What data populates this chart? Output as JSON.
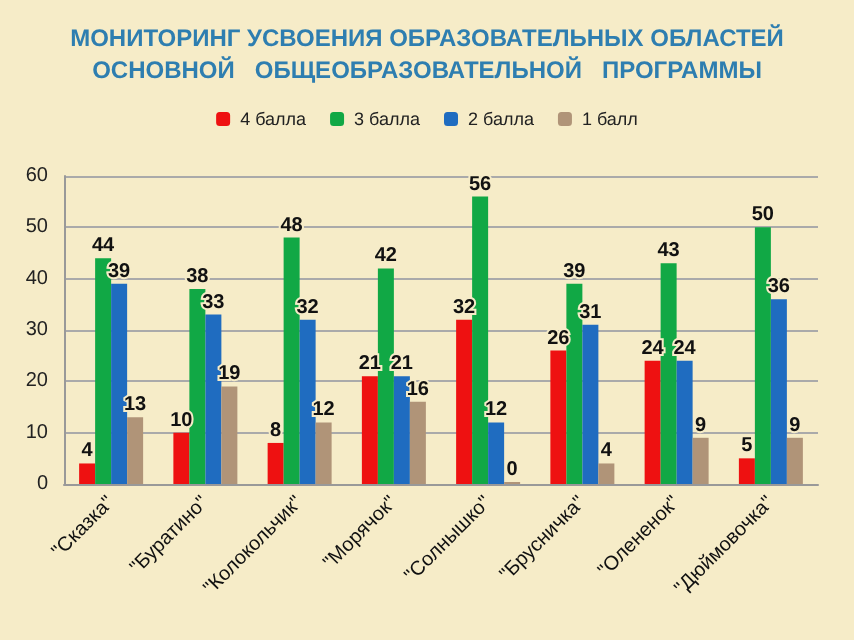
{
  "chart_data": {
    "type": "bar",
    "title": "МОНИТОРИНГ УСВОЕНИЯ ОБРАЗОВАТЕЛЬНЫХ ОБЛАСТЕЙ\nОСНОВНОЙ   ОБЩЕОБРАЗОВАТЕЛЬНОЙ   ПРОГРАММЫ",
    "categories": [
      "\"Сказка\"",
      "\"Буратино\"",
      "\"Колокольчик\"",
      "\"Морячок\"",
      "\"Солнышко\"",
      "\"Брусничка\"",
      "\"Олененок\"",
      "\"Дюймовочка\""
    ],
    "series": [
      {
        "name": "4 балла",
        "color": "#ee1111",
        "values": [
          4,
          10,
          8,
          21,
          32,
          26,
          24,
          5
        ]
      },
      {
        "name": "3 балла",
        "color": "#11a845",
        "values": [
          44,
          38,
          48,
          42,
          56,
          39,
          43,
          50
        ]
      },
      {
        "name": "2 балла",
        "color": "#1f6cc0",
        "values": [
          39,
          33,
          32,
          21,
          12,
          31,
          24,
          36
        ]
      },
      {
        "name": "1 балл",
        "color": "#b09478",
        "values": [
          13,
          19,
          12,
          16,
          0,
          4,
          9,
          9
        ]
      }
    ],
    "ylim": [
      0,
      60
    ],
    "yticks": [
      0,
      10,
      20,
      30,
      40,
      50,
      60
    ],
    "grid": "y",
    "legend": "top",
    "data_labels": true
  }
}
